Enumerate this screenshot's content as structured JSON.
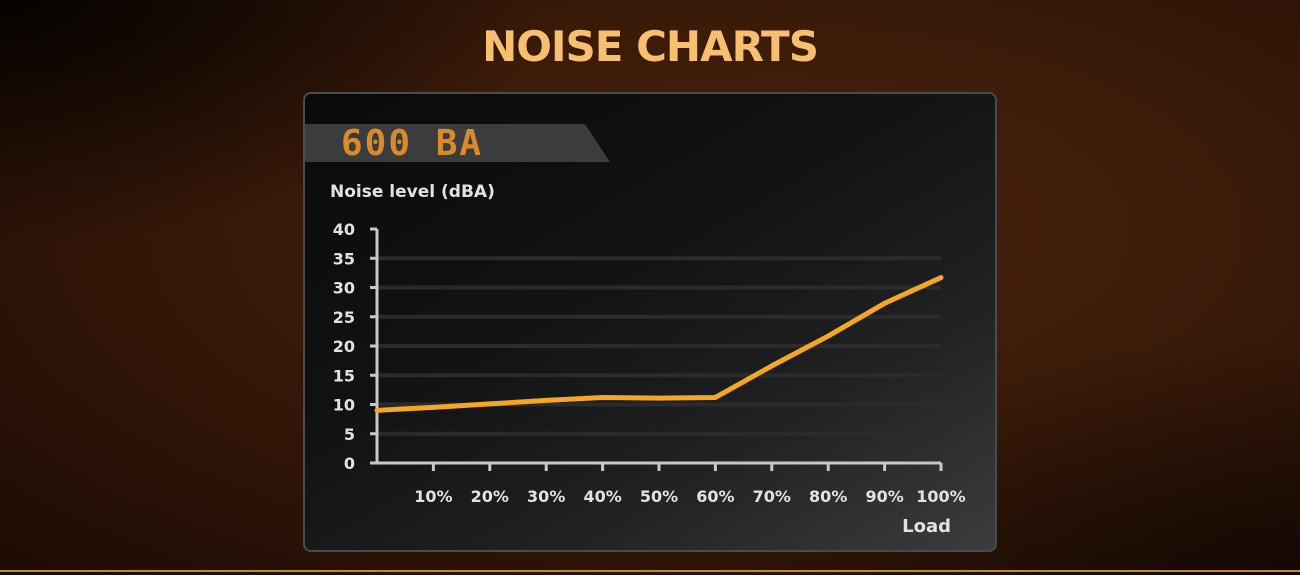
{
  "page_title": "NOISE CHARTS",
  "model_label": "600 BA",
  "colors": {
    "accent": "#f7bf6f",
    "line": "#f5a623",
    "model_text": "#d98a2a",
    "axis": "#c8c8c8",
    "grid": "#2b2b2b"
  },
  "chart_data": {
    "type": "line",
    "title": "",
    "ylabel": "Noise level (dBA)",
    "xlabel": "Load",
    "ylim": [
      0,
      40
    ],
    "xlim": [
      0,
      100
    ],
    "y_ticks": [
      "0",
      "5",
      "10",
      "15",
      "20",
      "25",
      "30",
      "35",
      "40"
    ],
    "y_tick_values": [
      0,
      5,
      10,
      15,
      20,
      25,
      30,
      35,
      40
    ],
    "x_ticks": [
      "10%",
      "20%",
      "30%",
      "40%",
      "50%",
      "60%",
      "70%",
      "80%",
      "90%",
      "100%"
    ],
    "x_tick_values": [
      10,
      20,
      30,
      40,
      50,
      60,
      70,
      80,
      90,
      100
    ],
    "grid": true,
    "series": [
      {
        "x": [
          0,
          10,
          20,
          30,
          40,
          50,
          60,
          70,
          80,
          90,
          100
        ],
        "y": [
          9,
          9.5,
          10.1,
          10.7,
          11.2,
          11.1,
          11.2,
          16.6,
          21.7,
          27.3,
          31.7
        ]
      }
    ]
  }
}
